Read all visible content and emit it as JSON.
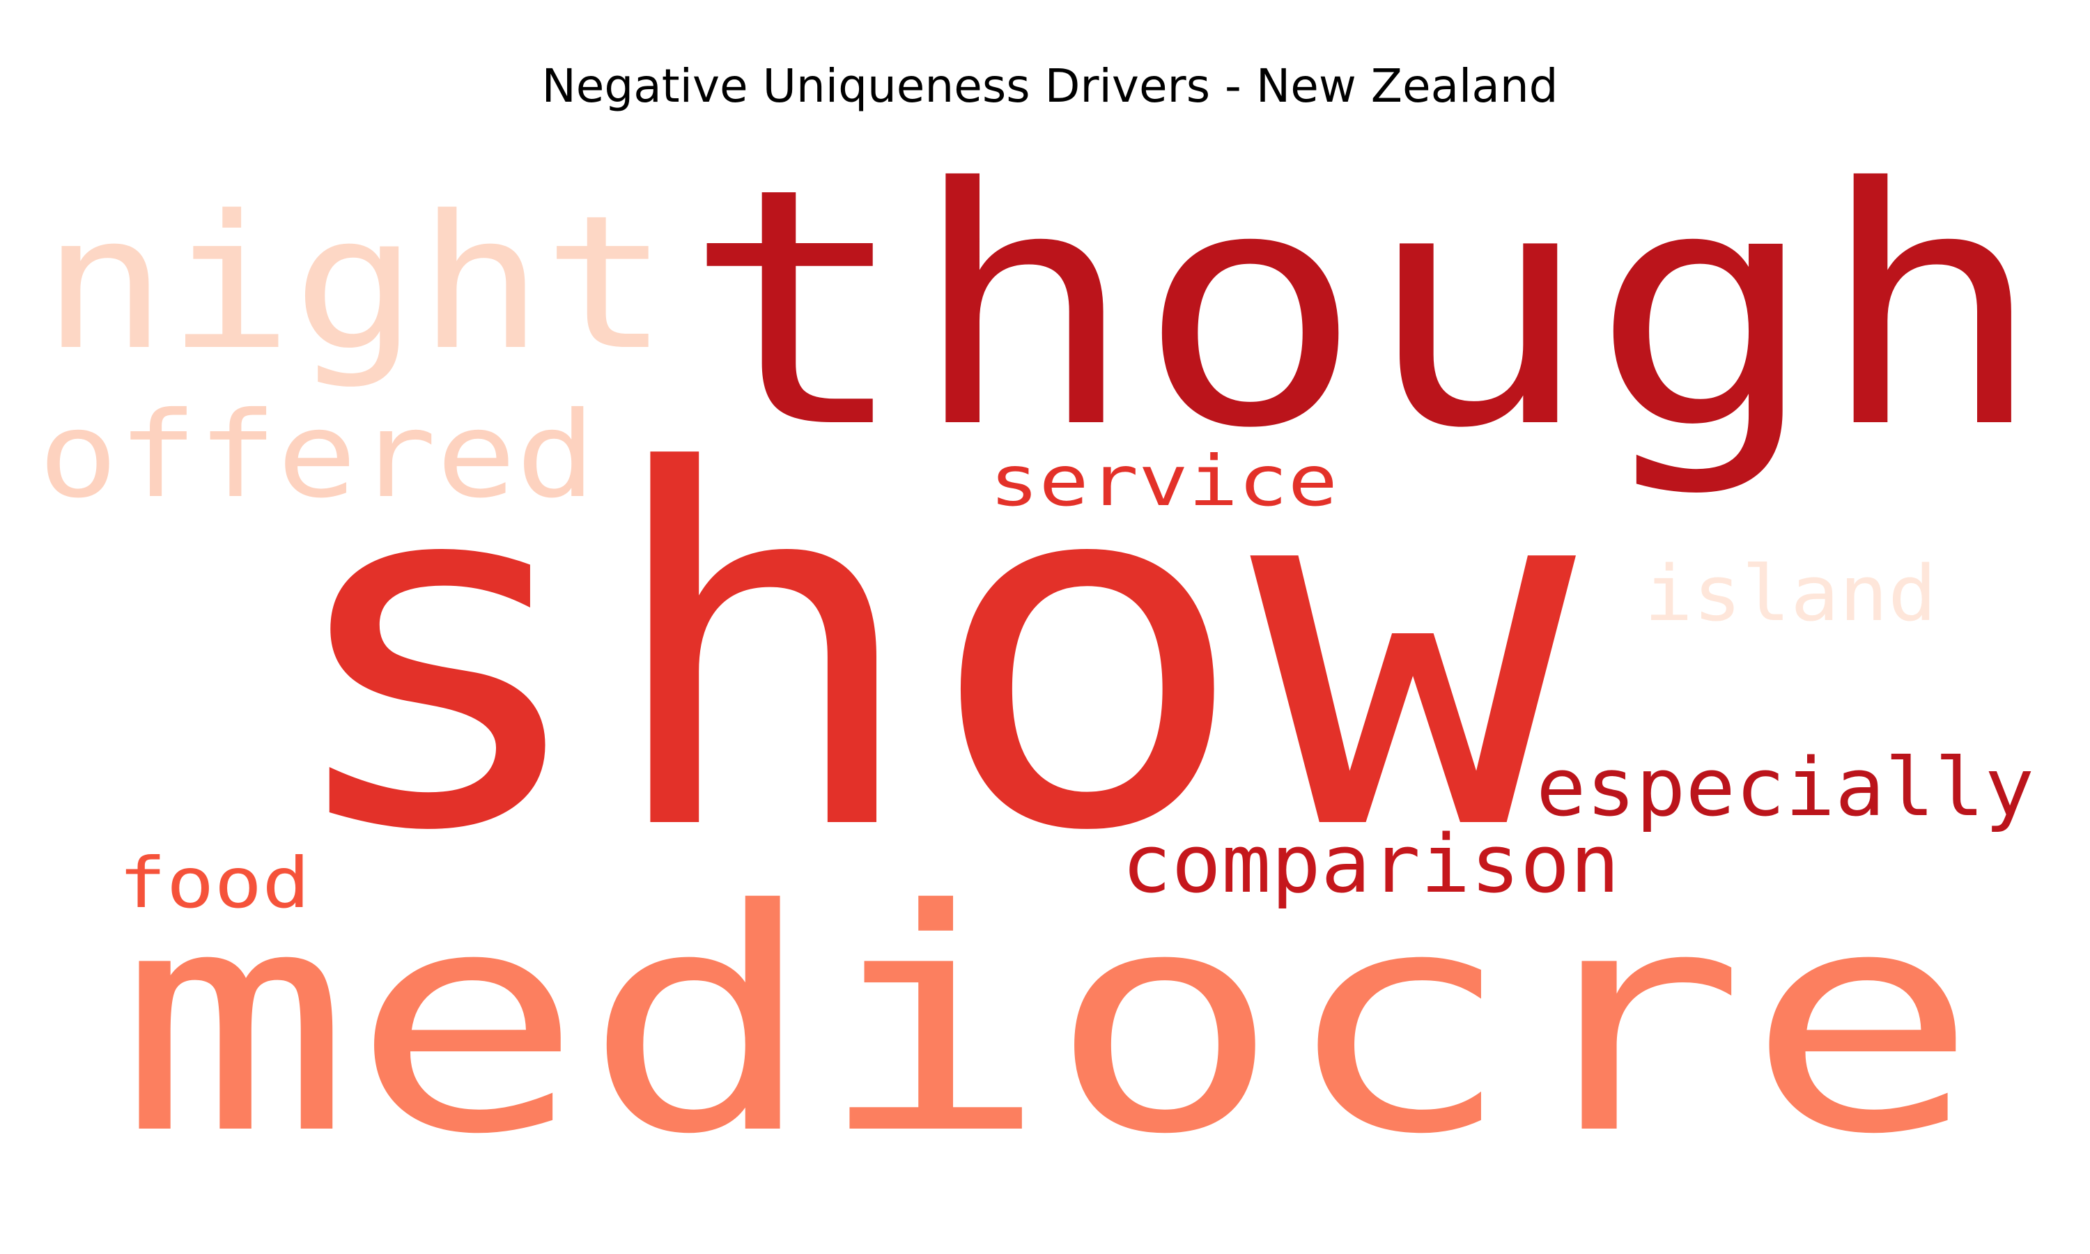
{
  "chart_data": {
    "type": "wordcloud",
    "title": "Negative Uniqueness Drivers - New Zealand",
    "words": [
      {
        "text": "show",
        "color": "#e33129"
      },
      {
        "text": "though",
        "color": "#bb141b"
      },
      {
        "text": "mediocre",
        "color": "#fc7f5f"
      },
      {
        "text": "night",
        "color": "#fdd7c5"
      },
      {
        "text": "offered",
        "color": "#fdd2bf"
      },
      {
        "text": "service",
        "color": "#e33129"
      },
      {
        "text": "island",
        "color": "#fee6da"
      },
      {
        "text": "especially",
        "color": "#bb141b"
      },
      {
        "text": "comparison",
        "color": "#c5171c"
      },
      {
        "text": "food",
        "color": "#f5523a"
      }
    ]
  }
}
